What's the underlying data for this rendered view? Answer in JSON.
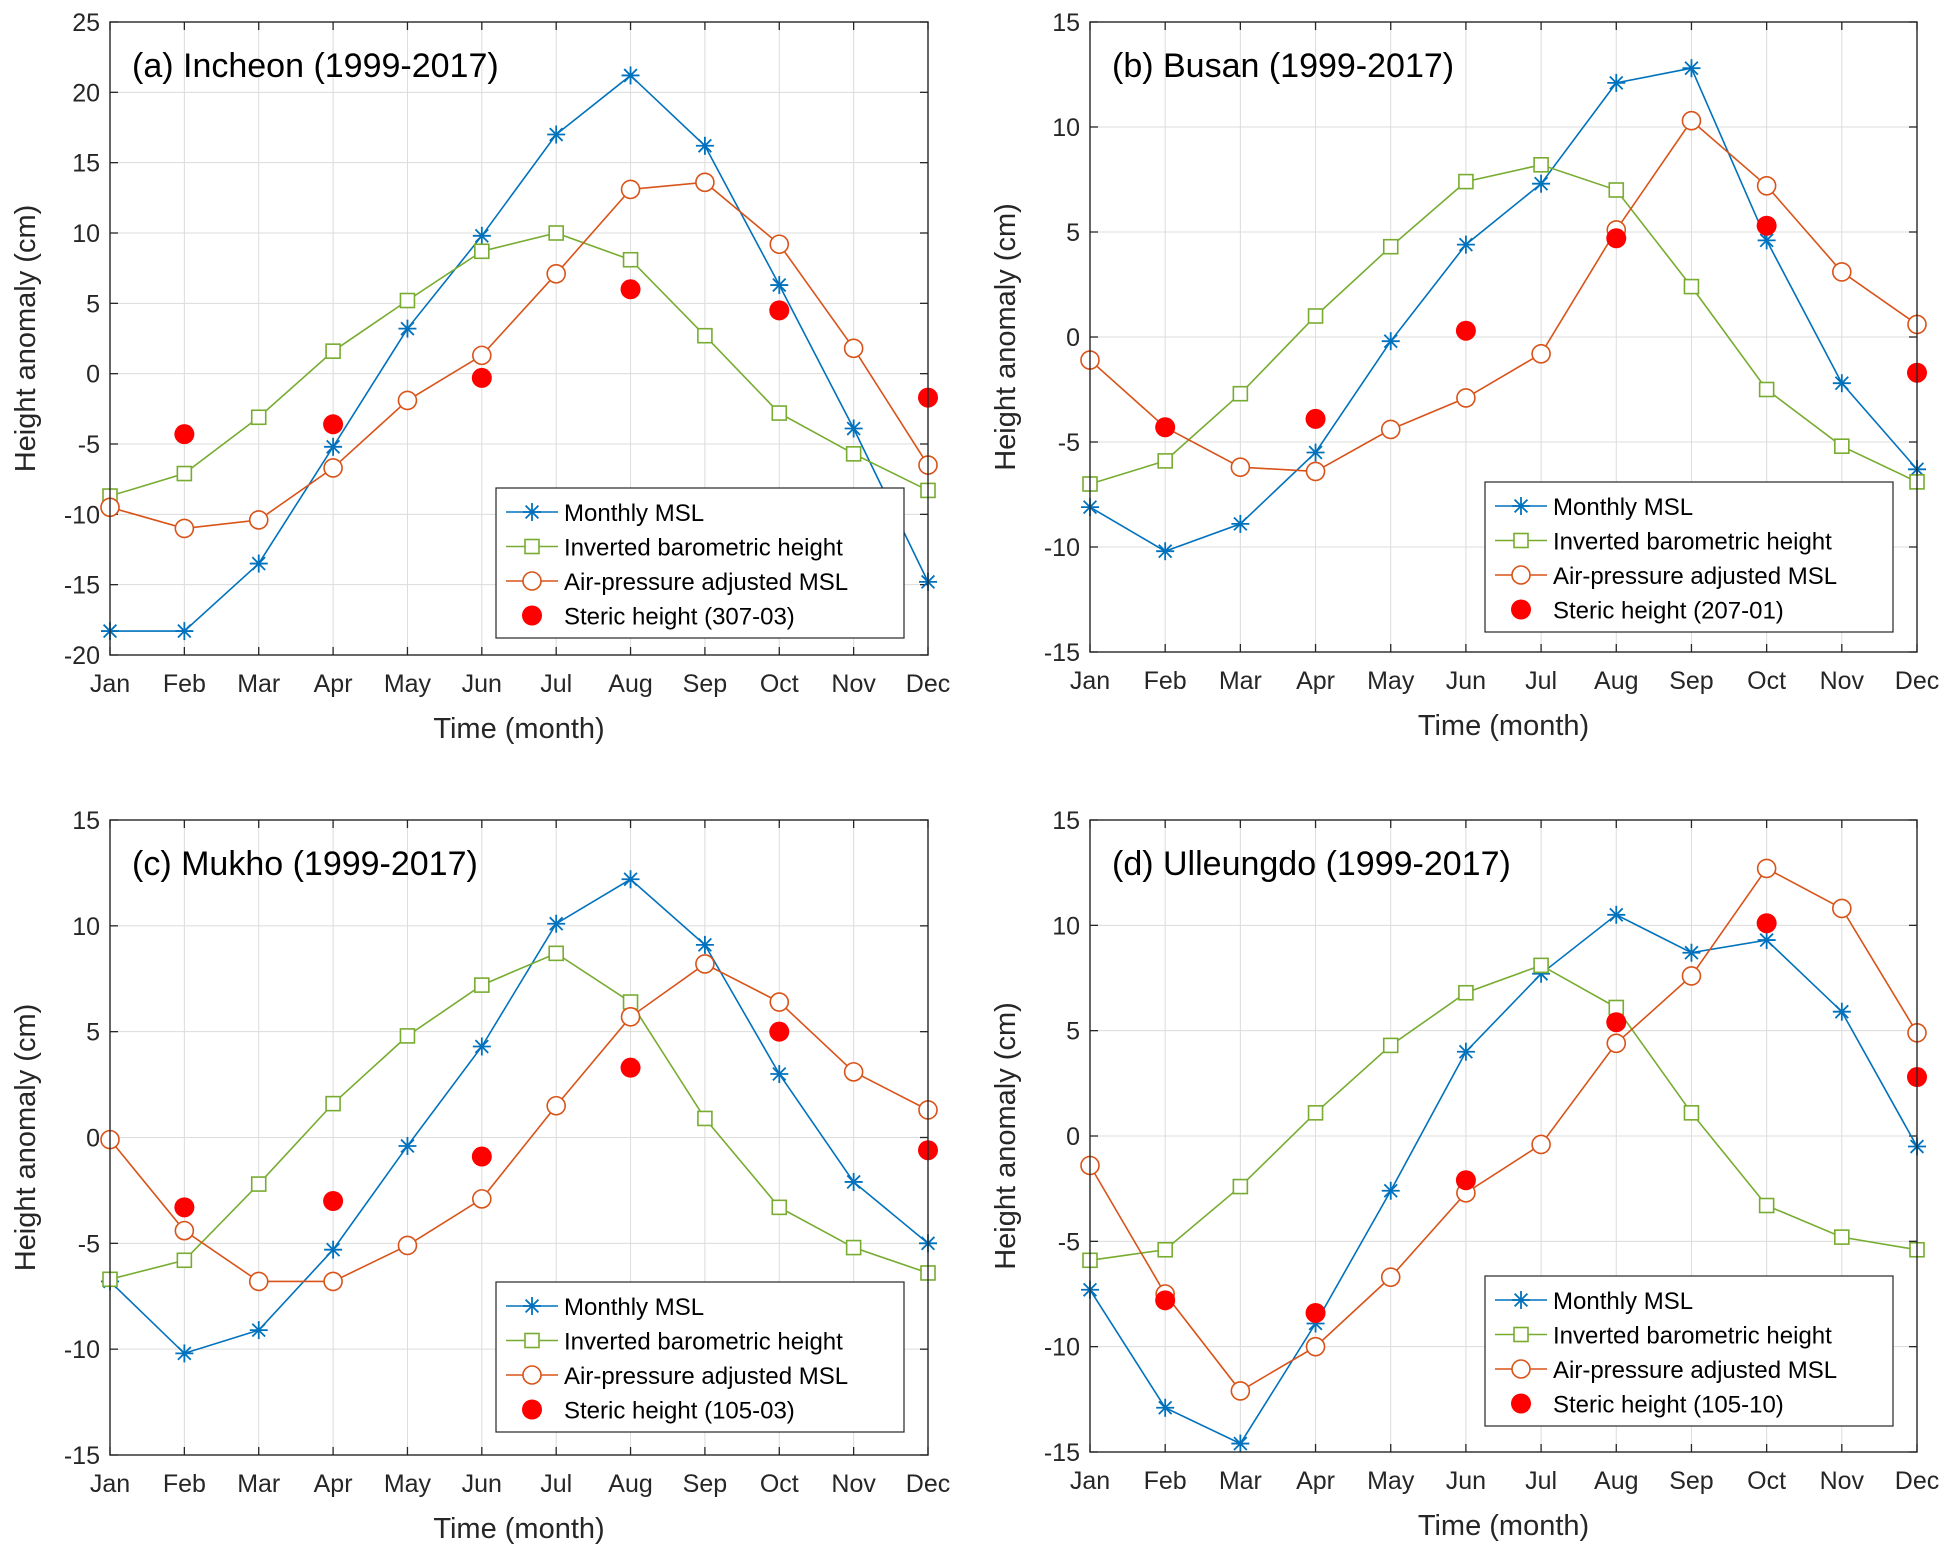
{
  "colors": {
    "msl": "#0072BD",
    "ib": "#77AC30",
    "adj": "#D95319",
    "steric": "#FF0000",
    "grid": "#DCDCDC",
    "axis": "#262626"
  },
  "legend_labels": {
    "msl": "Monthly MSL",
    "ib": "Inverted barometric height",
    "adj": "Air-pressure adjusted MSL"
  },
  "chart_data": [
    {
      "type": "line",
      "title": "(a) Incheon (1999-2017)",
      "xlabel": "Time (month)",
      "ylabel": "Height anomaly (cm)",
      "categories": [
        "Jan",
        "Feb",
        "Mar",
        "Apr",
        "May",
        "Jun",
        "Jul",
        "Aug",
        "Sep",
        "Oct",
        "Nov",
        "Dec"
      ],
      "ylim": [
        -20,
        25
      ],
      "yticks": [
        -20,
        -15,
        -10,
        -5,
        0,
        5,
        10,
        15,
        20,
        25
      ],
      "ytick_labels": [
        "-20",
        "-15",
        "-10",
        "-5",
        "0",
        "5",
        "10",
        "15",
        "20",
        "25"
      ],
      "grid": true,
      "legend_position": "bottom-right",
      "series": [
        {
          "key": "msl",
          "name": "Monthly MSL",
          "marker": "asterisk",
          "values": [
            -18.3,
            -18.3,
            -13.5,
            -5.2,
            3.2,
            9.8,
            17.0,
            21.2,
            16.2,
            6.3,
            -3.9,
            -14.8
          ]
        },
        {
          "key": "ib",
          "name": "Inverted barometric height",
          "marker": "square",
          "values": [
            -8.7,
            -7.1,
            -3.1,
            1.6,
            5.2,
            8.7,
            10.0,
            8.1,
            2.7,
            -2.8,
            -5.7,
            -8.3
          ]
        },
        {
          "key": "adj",
          "name": "Air-pressure adjusted MSL",
          "marker": "circle",
          "values": [
            -9.5,
            -11.0,
            -10.4,
            -6.7,
            -1.9,
            1.3,
            7.1,
            13.1,
            13.6,
            9.2,
            1.8,
            -6.5
          ]
        },
        {
          "key": "steric",
          "name": "Steric height (307-03)",
          "marker": "dot",
          "values": [
            null,
            -4.3,
            null,
            -3.6,
            null,
            -0.3,
            null,
            6.0,
            null,
            4.5,
            null,
            -1.7
          ]
        }
      ]
    },
    {
      "type": "line",
      "title": "(b) Busan (1999-2017)",
      "xlabel": "Time (month)",
      "ylabel": "Height anomaly (cm)",
      "categories": [
        "Jan",
        "Feb",
        "Mar",
        "Apr",
        "May",
        "Jun",
        "Jul",
        "Aug",
        "Sep",
        "Oct",
        "Nov",
        "Dec"
      ],
      "ylim": [
        -15,
        15
      ],
      "yticks": [
        -15,
        -10,
        -5,
        0,
        5,
        10,
        15
      ],
      "ytick_labels": [
        "-15",
        "-10",
        "-5",
        "0",
        "5",
        "10",
        "15"
      ],
      "grid": true,
      "legend_position": "bottom-right",
      "series": [
        {
          "key": "msl",
          "name": "Monthly MSL",
          "marker": "asterisk",
          "values": [
            -8.1,
            -10.2,
            -8.9,
            -5.5,
            -0.2,
            4.4,
            7.3,
            12.1,
            12.8,
            4.6,
            -2.2,
            -6.3
          ]
        },
        {
          "key": "ib",
          "name": "Inverted barometric height",
          "marker": "square",
          "values": [
            -7.0,
            -5.9,
            -2.7,
            1.0,
            4.3,
            7.4,
            8.2,
            7.0,
            2.4,
            -2.5,
            -5.2,
            -6.9
          ]
        },
        {
          "key": "adj",
          "name": "Air-pressure adjusted MSL",
          "marker": "circle",
          "values": [
            -1.1,
            -4.3,
            -6.2,
            -6.4,
            -4.4,
            -2.9,
            -0.8,
            5.1,
            10.3,
            7.2,
            3.1,
            0.6
          ]
        },
        {
          "key": "steric",
          "name": "Steric height (207-01)",
          "marker": "dot",
          "values": [
            null,
            -4.3,
            null,
            -3.9,
            null,
            0.3,
            null,
            4.7,
            null,
            5.3,
            null,
            -1.7
          ]
        }
      ]
    },
    {
      "type": "line",
      "title": "(c) Mukho (1999-2017)",
      "xlabel": "Time (month)",
      "ylabel": "Height anomaly (cm)",
      "categories": [
        "Jan",
        "Feb",
        "Mar",
        "Apr",
        "May",
        "Jun",
        "Jul",
        "Aug",
        "Sep",
        "Oct",
        "Nov",
        "Dec"
      ],
      "ylim": [
        -15,
        15
      ],
      "yticks": [
        -15,
        -10,
        -5,
        0,
        5,
        10,
        15
      ],
      "ytick_labels": [
        "-15",
        "-10",
        "-5",
        "0",
        "5",
        "10",
        "15"
      ],
      "grid": true,
      "legend_position": "bottom-right",
      "series": [
        {
          "key": "msl",
          "name": "Monthly MSL",
          "marker": "asterisk",
          "values": [
            -6.8,
            -10.2,
            -9.1,
            -5.3,
            -0.4,
            4.3,
            10.1,
            12.2,
            9.1,
            3.0,
            -2.1,
            -5.0
          ]
        },
        {
          "key": "ib",
          "name": "Inverted barometric height",
          "marker": "square",
          "values": [
            -6.7,
            -5.8,
            -2.2,
            1.6,
            4.8,
            7.2,
            8.7,
            6.4,
            0.9,
            -3.3,
            -5.2,
            -6.4
          ]
        },
        {
          "key": "adj",
          "name": "Air-pressure adjusted MSL",
          "marker": "circle",
          "values": [
            -0.1,
            -4.4,
            -6.8,
            -6.8,
            -5.1,
            -2.9,
            1.5,
            5.7,
            8.2,
            6.4,
            3.1,
            1.3
          ]
        },
        {
          "key": "steric",
          "name": "Steric height (105-03)",
          "marker": "dot",
          "values": [
            null,
            -3.3,
            null,
            -3.0,
            null,
            -0.9,
            null,
            3.3,
            null,
            5.0,
            null,
            -0.6
          ]
        }
      ]
    },
    {
      "type": "line",
      "title": "(d) Ulleungdo (1999-2017)",
      "xlabel": "Time (month)",
      "ylabel": "Height anomaly (cm)",
      "categories": [
        "Jan",
        "Feb",
        "Mar",
        "Apr",
        "May",
        "Jun",
        "Jul",
        "Aug",
        "Sep",
        "Oct",
        "Nov",
        "Dec"
      ],
      "ylim": [
        -15,
        15
      ],
      "yticks": [
        -15,
        -10,
        -5,
        0,
        5,
        10,
        15
      ],
      "ytick_labels": [
        "-15",
        "-10",
        "-5",
        "0",
        "5",
        "10",
        "15"
      ],
      "grid": true,
      "legend_position": "bottom-right",
      "series": [
        {
          "key": "msl",
          "name": "Monthly MSL",
          "marker": "asterisk",
          "values": [
            -7.3,
            -12.9,
            -14.6,
            -8.9,
            -2.6,
            4.0,
            7.7,
            10.5,
            8.7,
            9.3,
            5.9,
            -0.5
          ]
        },
        {
          "key": "ib",
          "name": "Inverted barometric height",
          "marker": "square",
          "values": [
            -5.9,
            -5.4,
            -2.4,
            1.1,
            4.3,
            6.8,
            8.1,
            6.1,
            1.1,
            -3.3,
            -4.8,
            -5.4
          ]
        },
        {
          "key": "adj",
          "name": "Air-pressure adjusted MSL",
          "marker": "circle",
          "values": [
            -1.4,
            -7.5,
            -12.1,
            -10.0,
            -6.7,
            -2.7,
            -0.4,
            4.4,
            7.6,
            12.7,
            10.8,
            4.9
          ]
        },
        {
          "key": "steric",
          "name": "Steric height (105-10)",
          "marker": "dot",
          "values": [
            null,
            -7.8,
            null,
            -8.4,
            null,
            -2.1,
            null,
            5.4,
            null,
            10.1,
            null,
            2.8
          ]
        }
      ]
    }
  ]
}
